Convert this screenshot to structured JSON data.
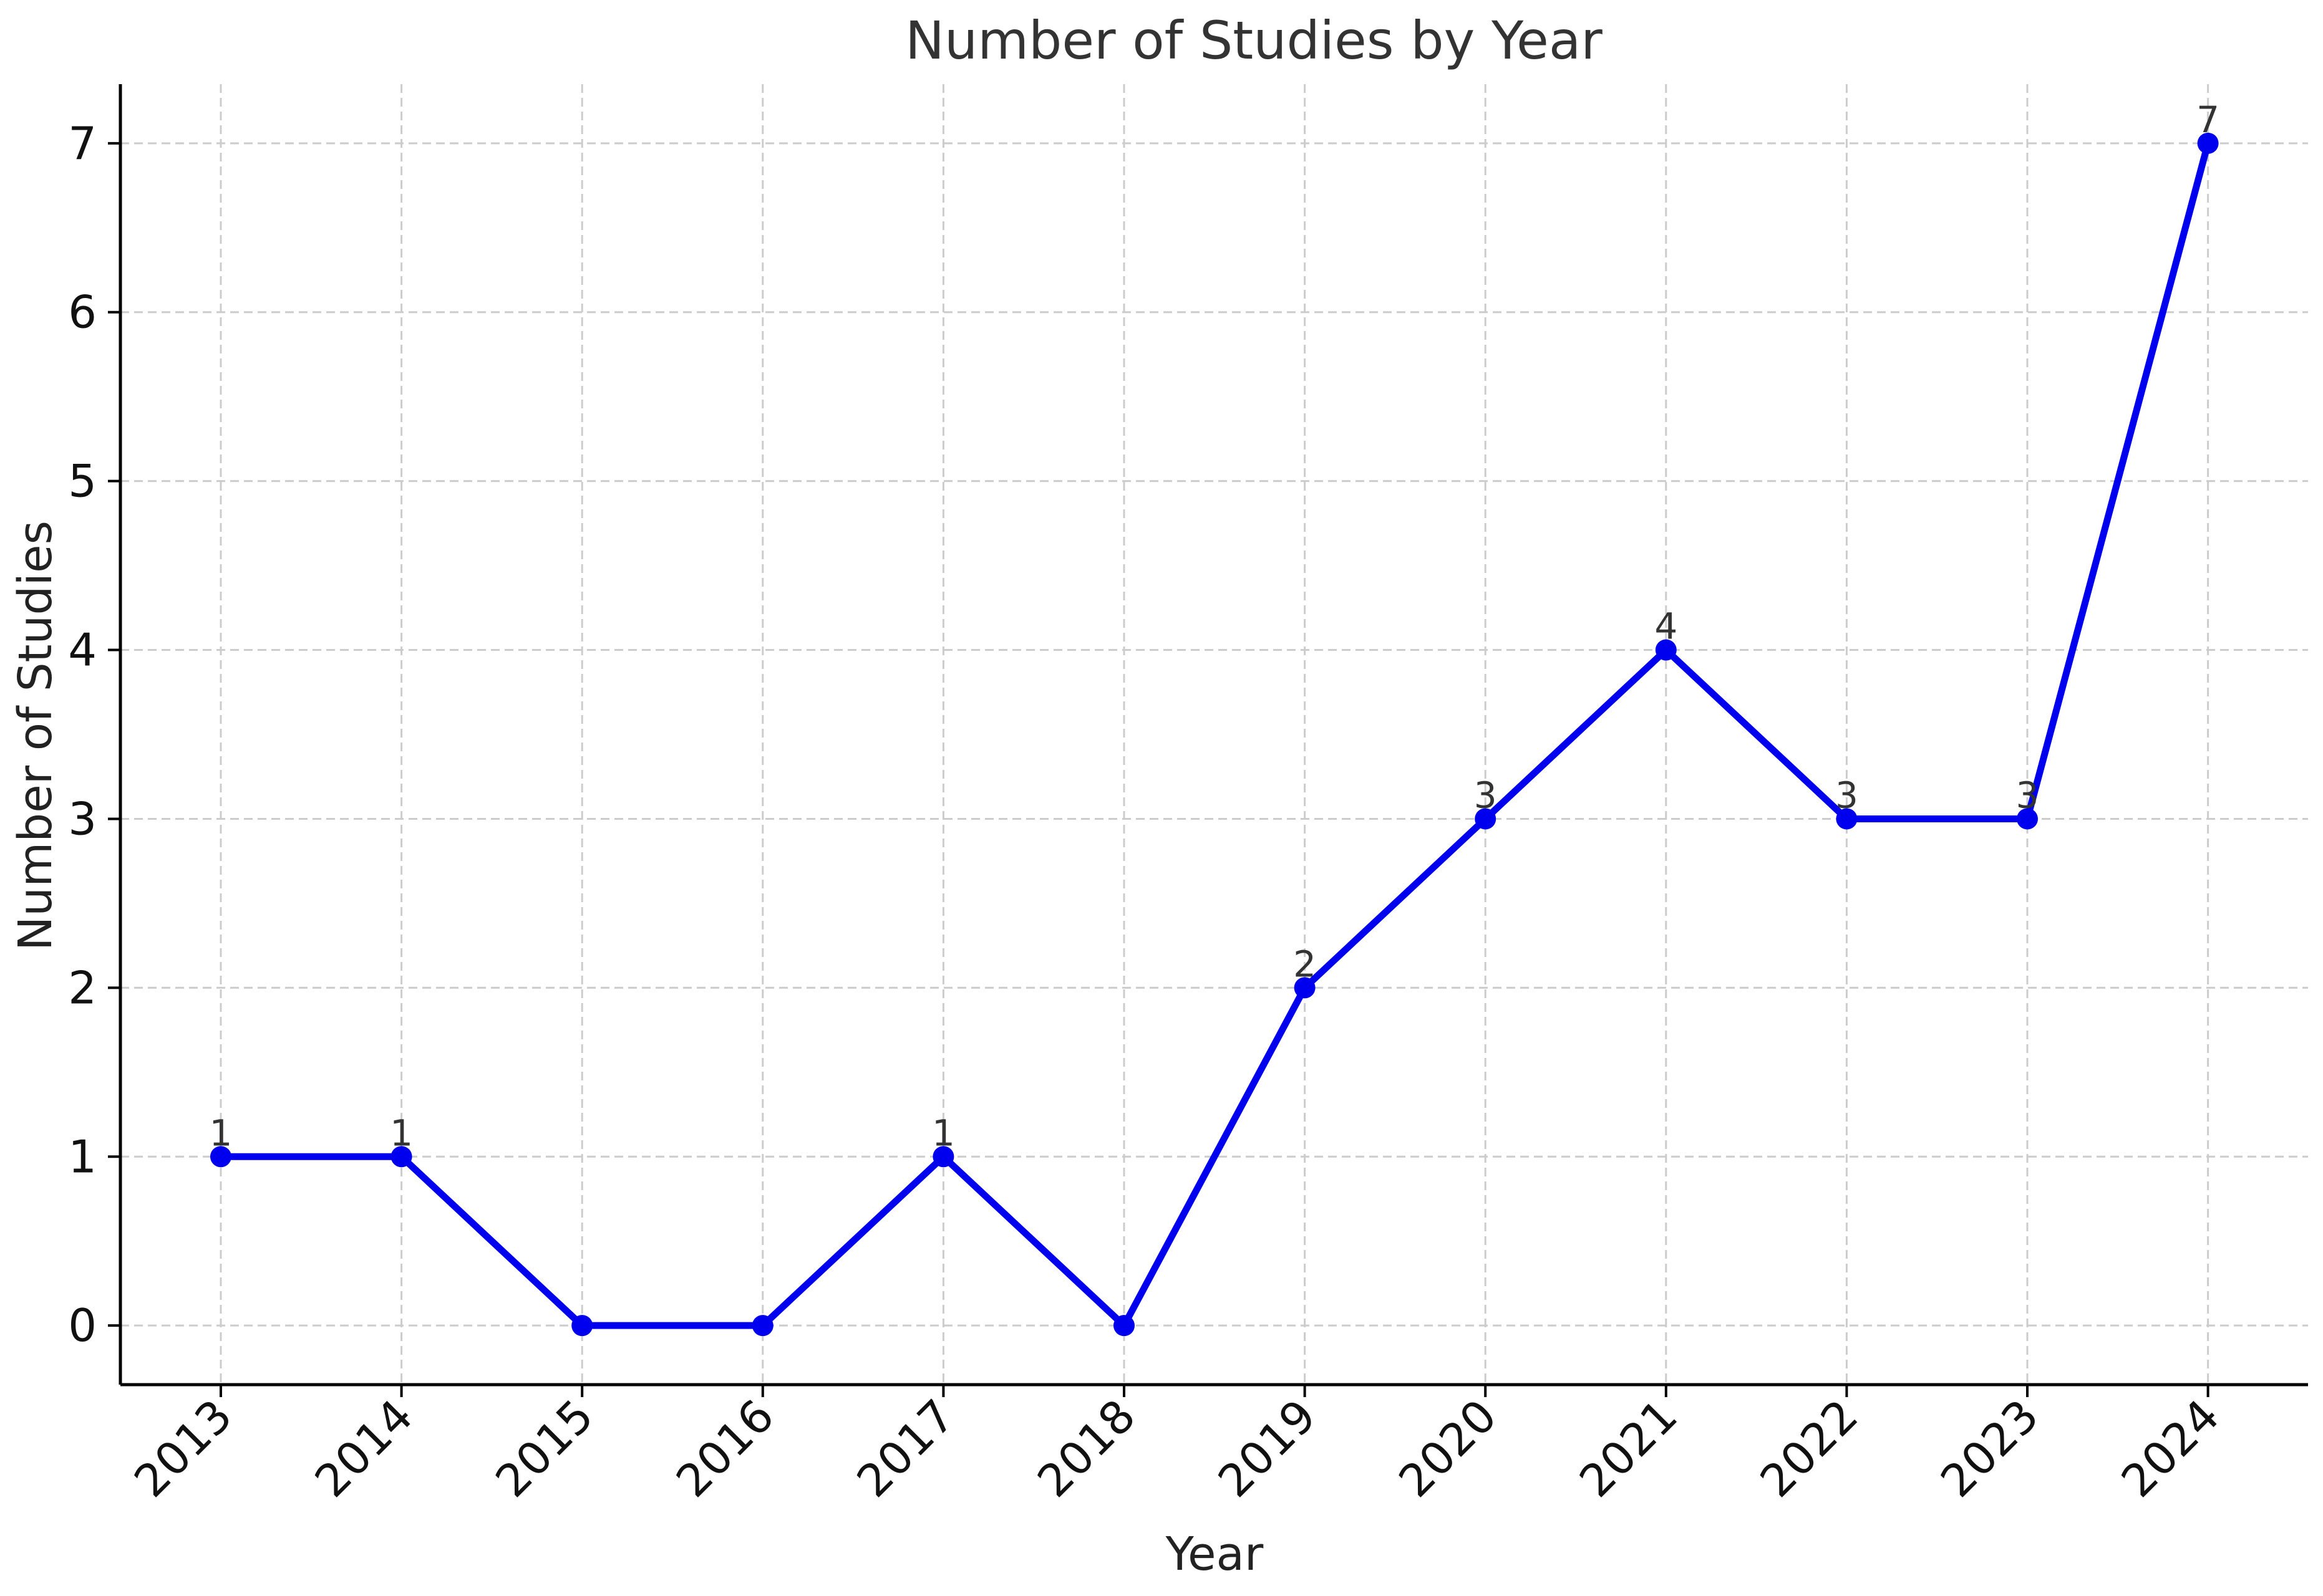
{
  "chart_data": {
    "type": "line",
    "title": "Number of Studies by Year",
    "xlabel": "Year",
    "ylabel": "Number of Studies",
    "categories": [
      "2013",
      "2014",
      "2015",
      "2016",
      "2017",
      "2018",
      "2019",
      "2020",
      "2021",
      "2022",
      "2023",
      "2024"
    ],
    "series": [
      {
        "values": [
          1,
          1,
          0,
          0,
          1,
          0,
          2,
          3,
          4,
          3,
          3,
          7
        ],
        "color": "#0000ee",
        "marker": "circle"
      }
    ],
    "data_labels": [
      "1",
      "1",
      "",
      "",
      "1",
      "",
      "2",
      "3",
      "4",
      "3",
      "3",
      "7"
    ],
    "yticks": [
      0,
      1,
      2,
      3,
      4,
      5,
      6,
      7
    ],
    "ylim": [
      -0.35,
      7.35
    ],
    "grid": true,
    "legend": "none"
  }
}
